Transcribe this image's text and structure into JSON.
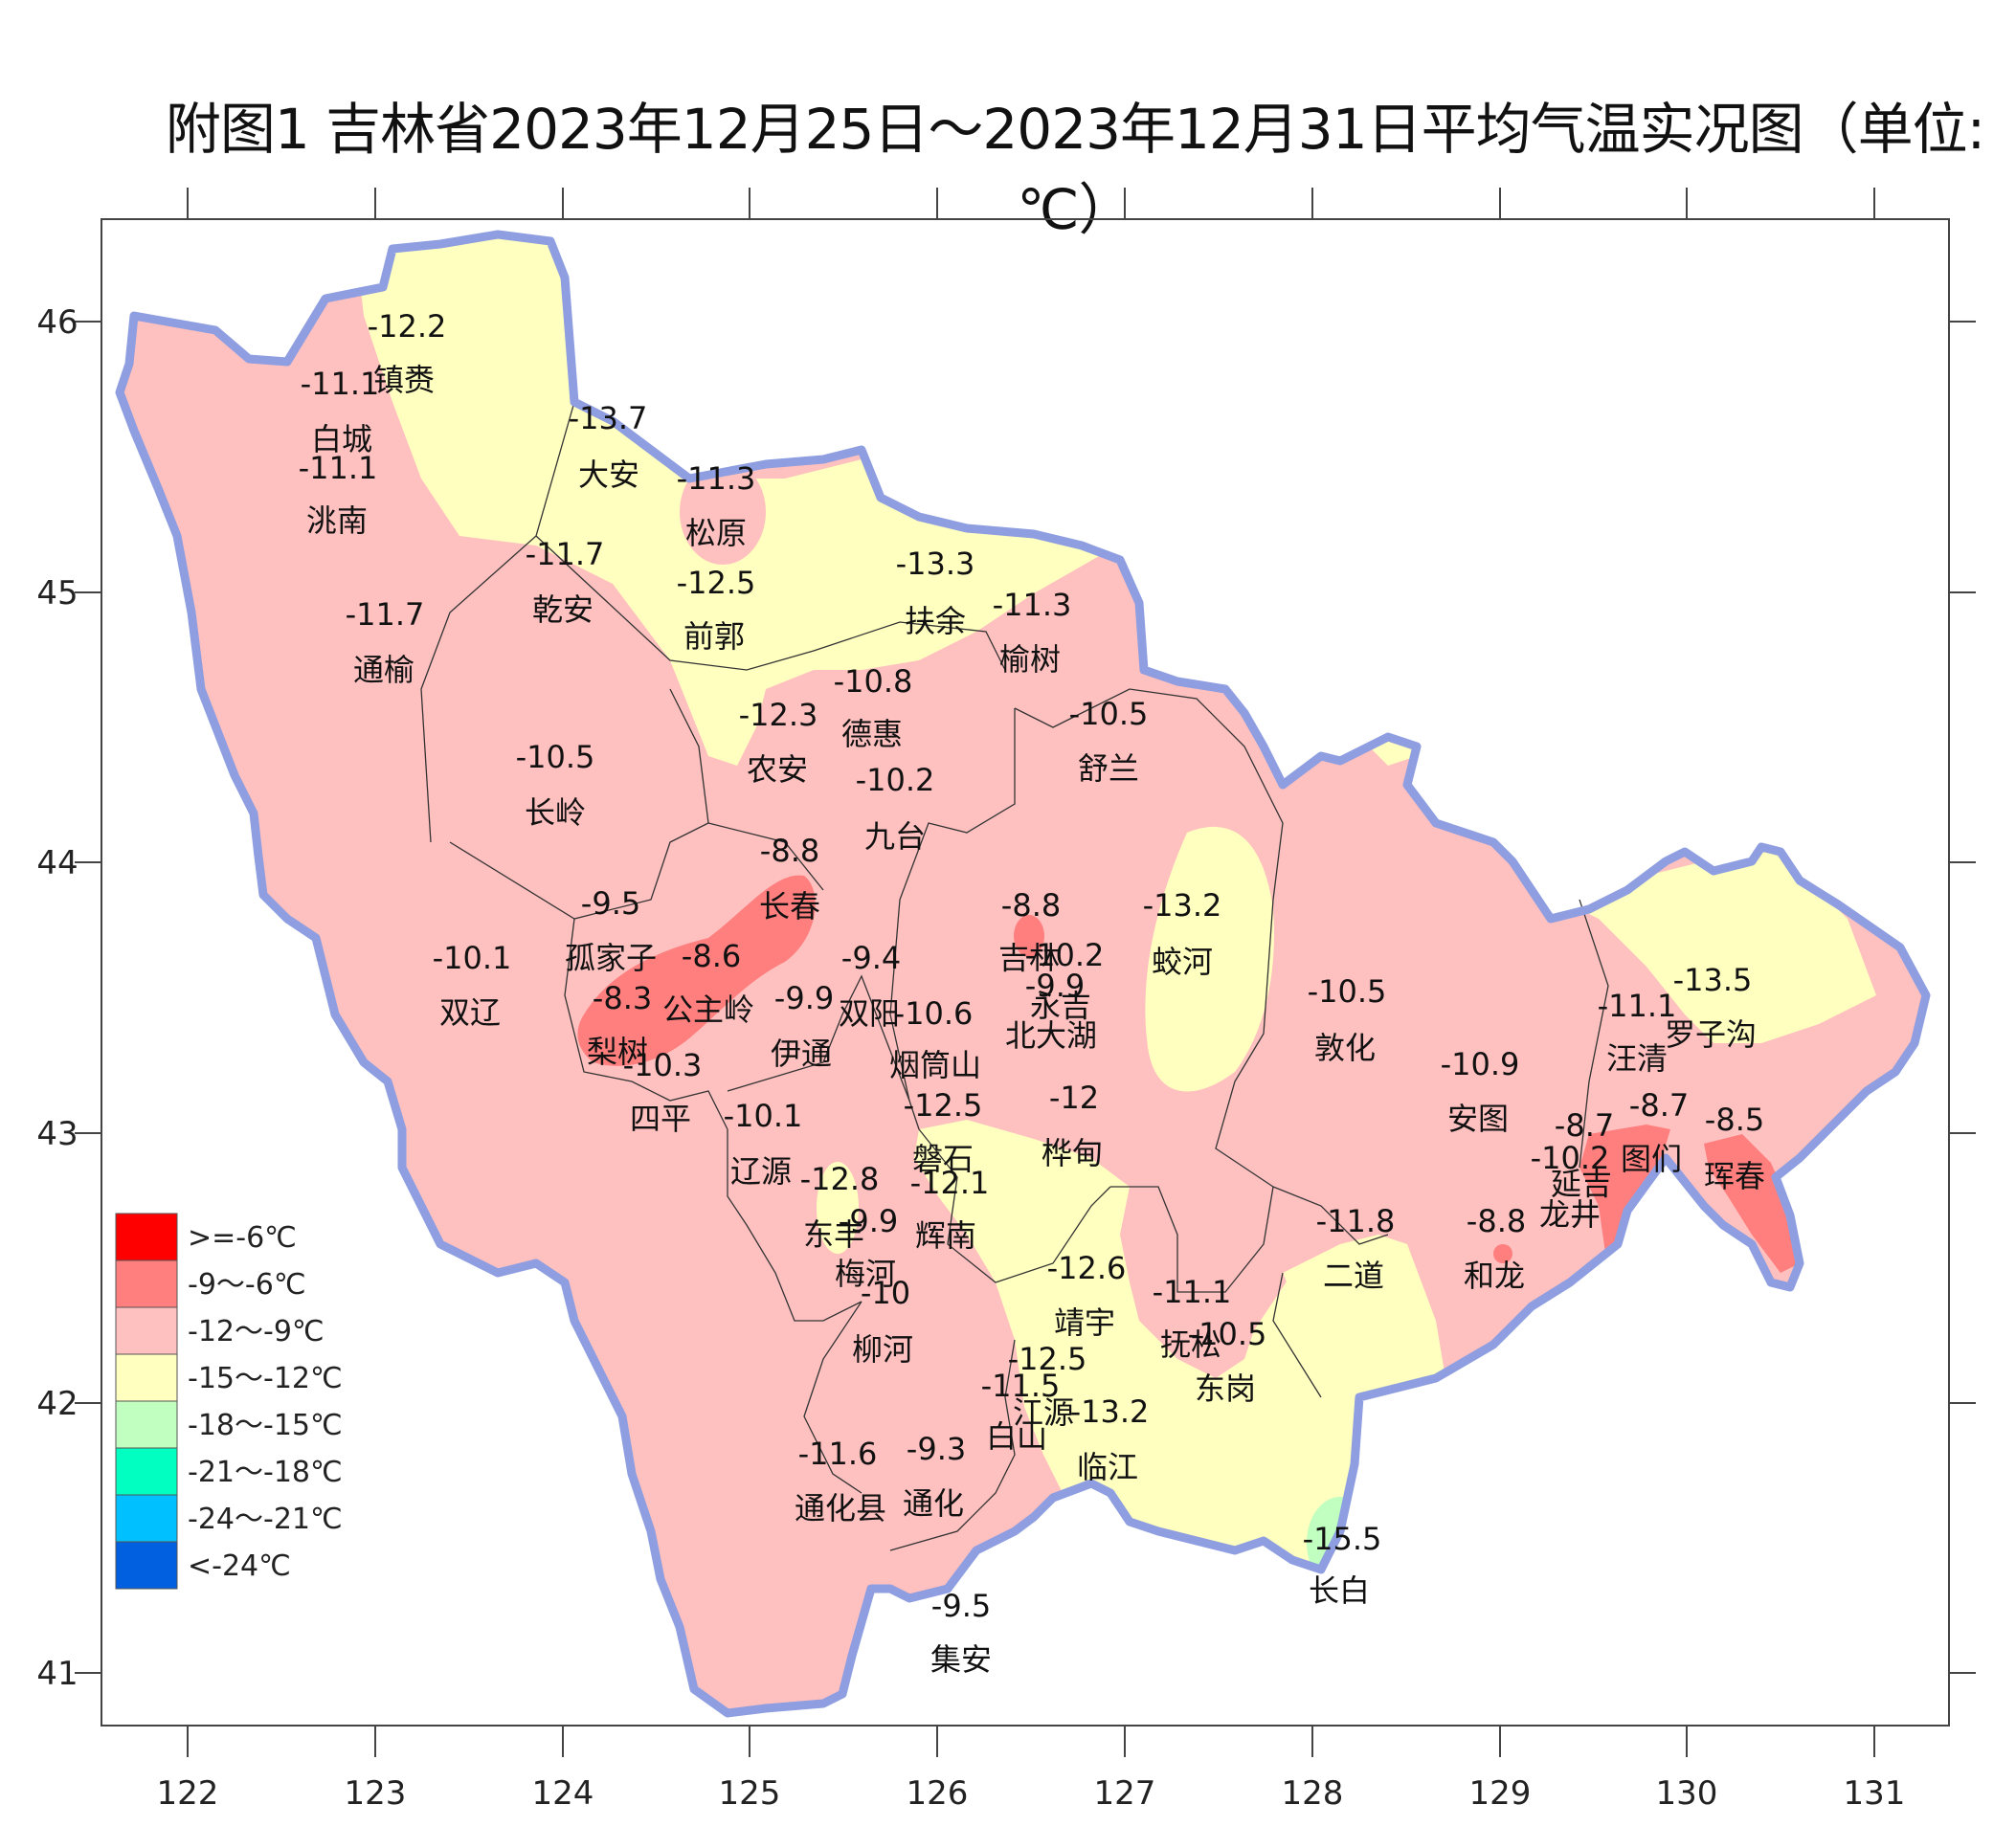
{
  "title": "附图1 吉林省2023年12月25日～2023年12月31日平均气温实况图（单位:℃）",
  "axes": {
    "lon_ticks": [
      "122",
      "123",
      "124",
      "125",
      "126",
      "127",
      "128",
      "129",
      "130",
      "131"
    ],
    "lat_ticks": [
      "46",
      "45",
      "44",
      "43",
      "42",
      "41"
    ]
  },
  "legend": [
    {
      "label": ">=-6℃",
      "color": "#ff0000"
    },
    {
      "label": "-9～-6℃",
      "color": "#ff7f7f"
    },
    {
      "label": "-12～-9℃",
      "color": "#ffc0c0"
    },
    {
      "label": "-15～-12℃",
      "color": "#ffffc0"
    },
    {
      "label": "-18～-15℃",
      "color": "#c0ffc0"
    },
    {
      "label": "-21～-18℃",
      "color": "#00ffc0"
    },
    {
      "label": "-24～-21℃",
      "color": "#00c0ff"
    },
    {
      "label": "<-24℃",
      "color": "#0060e0"
    }
  ],
  "stations": [
    {
      "name": "镇赉",
      "value": "-12.2"
    },
    {
      "name": "白城",
      "value": "-11.1"
    },
    {
      "name": "洮南",
      "value": "-11.1"
    },
    {
      "name": "大安",
      "value": "-13.7"
    },
    {
      "name": "松原",
      "value": "-11.3"
    },
    {
      "name": "乾安",
      "value": "-11.7"
    },
    {
      "name": "前郭",
      "value": "-12.5"
    },
    {
      "name": "通榆",
      "value": "-11.7"
    },
    {
      "name": "扶余",
      "value": "-13.3"
    },
    {
      "name": "榆树",
      "value": "-11.3"
    },
    {
      "name": "德惠",
      "value": "-10.8"
    },
    {
      "name": "农安",
      "value": "-12.3"
    },
    {
      "name": "舒兰",
      "value": "-10.5"
    },
    {
      "name": "长岭",
      "value": "-10.5"
    },
    {
      "name": "九台",
      "value": "-10.2"
    },
    {
      "name": "长春",
      "value": "-8.8"
    },
    {
      "name": "孤家子",
      "value": "-9.5"
    },
    {
      "name": "公主岭",
      "value": "-8.6"
    },
    {
      "name": "双辽",
      "value": "-10.1"
    },
    {
      "name": "梨树",
      "value": "-8.3"
    },
    {
      "name": "四平",
      "value": "-10.3"
    },
    {
      "name": "双阳",
      "value": "-9.4"
    },
    {
      "name": "伊通",
      "value": "-9.9"
    },
    {
      "name": "烟筒山",
      "value": "-10.6"
    },
    {
      "name": "吉林",
      "value": "-8.8"
    },
    {
      "name": "永吉",
      "value": "-10.2"
    },
    {
      "name": "北大湖",
      "value": "-9.9"
    },
    {
      "name": "蛟河",
      "value": "-13.2"
    },
    {
      "name": "敦化",
      "value": "-10.5"
    },
    {
      "name": "磐石",
      "value": "-12.5"
    },
    {
      "name": "桦甸",
      "value": "-12"
    },
    {
      "name": "辽源",
      "value": "-10.1"
    },
    {
      "name": "东丰",
      "value": "-12.8"
    },
    {
      "name": "辉南",
      "value": "-12.1"
    },
    {
      "name": "梅河",
      "value": "-9.9"
    },
    {
      "name": "柳河",
      "value": "-10"
    },
    {
      "name": "靖宇",
      "value": "-12.6"
    },
    {
      "name": "抚松",
      "value": "-11.1"
    },
    {
      "name": "东岗",
      "value": "-10.5"
    },
    {
      "name": "江源",
      "value": "-12.5"
    },
    {
      "name": "白山",
      "value": "-11.5"
    },
    {
      "name": "临江",
      "value": "-13.2"
    },
    {
      "name": "通化县",
      "value": "-11.6"
    },
    {
      "name": "通化",
      "value": "-9.3"
    },
    {
      "name": "集安",
      "value": "-9.5"
    },
    {
      "name": "长白",
      "value": "-15.5"
    },
    {
      "name": "二道",
      "value": "-11.8"
    },
    {
      "name": "和龙",
      "value": "-8.8"
    },
    {
      "name": "安图",
      "value": "-10.9"
    },
    {
      "name": "延吉",
      "value": "-10.2"
    },
    {
      "name": "龙井",
      "value": "-8.7"
    },
    {
      "name": "图们",
      "value": "-8.7"
    },
    {
      "name": "汪清",
      "value": "-11.1"
    },
    {
      "name": "罗子沟",
      "value": "-13.5"
    },
    {
      "name": "珲春",
      "value": "-8.5"
    }
  ]
}
